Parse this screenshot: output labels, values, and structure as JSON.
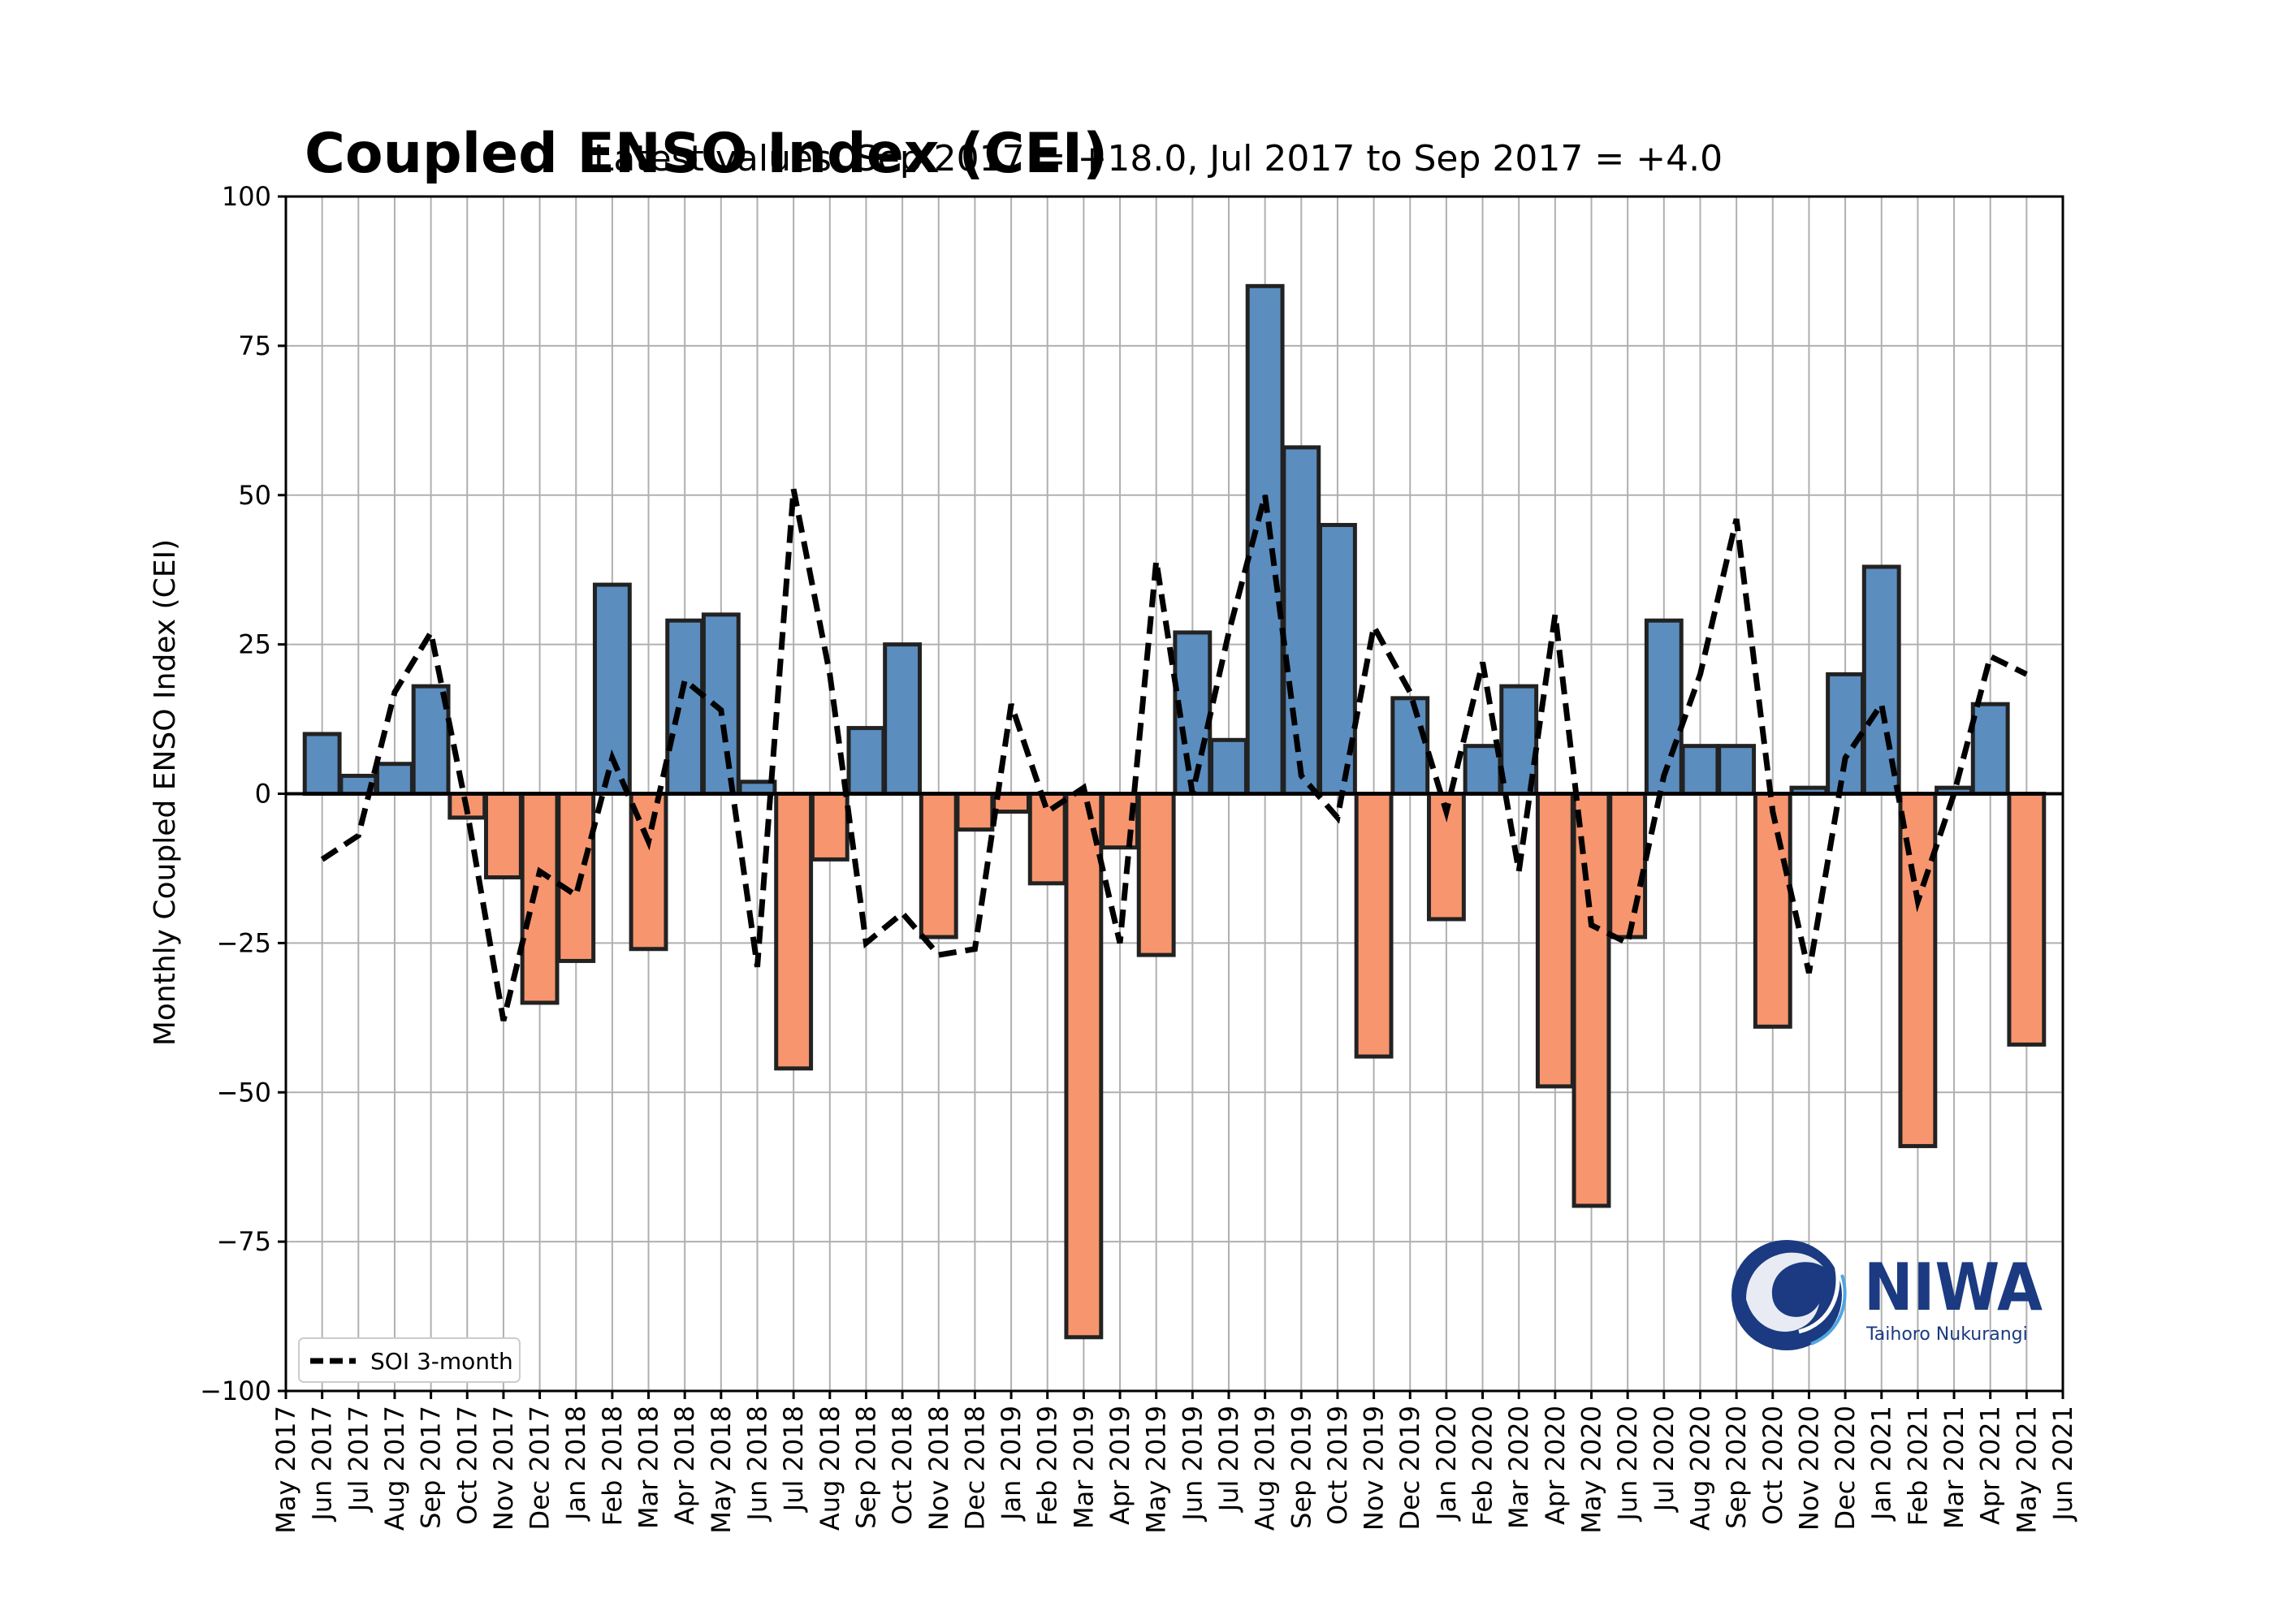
{
  "title": "Coupled ENSO Index (CEI)",
  "subtitle": "Latest values: Sep 2017 = +18.0, Jul 2017 to Sep 2017 = +4.0",
  "logo": {
    "name": "NIWA",
    "tagline": "Taihoro Nukurangi"
  },
  "colors": {
    "positive": "#5b8dbf",
    "negative": "#f7956e",
    "edge": "#222222",
    "line": "#000000",
    "grid": "#b0b0b0"
  },
  "chart_data": {
    "type": "bar",
    "title": "Coupled ENSO Index (CEI)",
    "subtitle": "Latest values: Sep 2017 = +18.0, Jul 2017 to Sep 2017 = +4.0",
    "ylabel": "Monthly Coupled ENSO Index (CEI)",
    "xlabel": "",
    "ylim": [
      -100,
      100
    ],
    "yticks": [
      -100,
      -75,
      -50,
      -25,
      0,
      25,
      50,
      75,
      100
    ],
    "ytick_labels": [
      "−100",
      "−75",
      "−50",
      "−25",
      "0",
      "25",
      "50",
      "75",
      "100"
    ],
    "grid": true,
    "legend_position": "lower-left",
    "xtick_labels": [
      "May 2017",
      "Jun 2017",
      "Jul 2017",
      "Aug 2017",
      "Sep 2017",
      "Oct 2017",
      "Nov 2017",
      "Dec 2017",
      "Jan 2018",
      "Feb 2018",
      "Mar 2018",
      "Apr 2018",
      "May 2018",
      "Jun 2018",
      "Jul 2018",
      "Aug 2018",
      "Sep 2018",
      "Oct 2018",
      "Nov 2018",
      "Dec 2018",
      "Jan 2019",
      "Feb 2019",
      "Mar 2019",
      "Apr 2019",
      "May 2019",
      "Jun 2019",
      "Jul 2019",
      "Aug 2019",
      "Sep 2019",
      "Oct 2019",
      "Nov 2019",
      "Dec 2019",
      "Jan 2020",
      "Feb 2020",
      "Mar 2020",
      "Apr 2020",
      "May 2020",
      "Jun 2020",
      "Jul 2020",
      "Aug 2020",
      "Sep 2020",
      "Oct 2020",
      "Nov 2020",
      "Dec 2020",
      "Jan 2021",
      "Feb 2021",
      "Mar 2021",
      "Apr 2021",
      "May 2021",
      "Jun 2021"
    ],
    "categories": [
      "Jun 2017",
      "Jul 2017",
      "Aug 2017",
      "Sep 2017",
      "Oct 2017",
      "Nov 2017",
      "Dec 2017",
      "Jan 2018",
      "Feb 2018",
      "Mar 2018",
      "Apr 2018",
      "May 2018",
      "Jun 2018",
      "Jul 2018",
      "Aug 2018",
      "Sep 2018",
      "Oct 2018",
      "Nov 2018",
      "Dec 2018",
      "Jan 2019",
      "Feb 2019",
      "Mar 2019",
      "Apr 2019",
      "May 2019",
      "Jun 2019",
      "Jul 2019",
      "Aug 2019",
      "Sep 2019",
      "Oct 2019",
      "Nov 2019",
      "Dec 2019",
      "Jan 2020",
      "Feb 2020",
      "Mar 2020",
      "Apr 2020",
      "May 2020",
      "Jun 2020",
      "Jul 2020",
      "Aug 2020",
      "Sep 2020",
      "Oct 2020",
      "Nov 2020",
      "Dec 2020",
      "Jan 2021",
      "Feb 2021",
      "Mar 2021",
      "Apr 2021",
      "May 2021"
    ],
    "series": [
      {
        "type": "bar",
        "values": [
          10,
          3,
          5,
          18,
          -4,
          -14,
          -35,
          -28,
          35,
          -26,
          29,
          30,
          2,
          -46,
          -11,
          11,
          25,
          -24,
          -6,
          -3,
          -15,
          -91,
          -9,
          -27,
          27,
          9,
          85,
          58,
          45,
          -44,
          16,
          -21,
          8,
          18,
          -49,
          -69,
          -24,
          29,
          8,
          8,
          -39,
          1,
          20,
          38,
          -59,
          1,
          15,
          -42
        ]
      },
      {
        "name": "SOI 3-month",
        "type": "line",
        "style": "dashed",
        "values": [
          -11,
          -7,
          17,
          27,
          -3,
          -38,
          -13,
          -17,
          6,
          -8,
          19,
          14,
          -29,
          51,
          20,
          -25,
          -20,
          -27,
          -26,
          15,
          -3,
          1,
          -25,
          39,
          0,
          27,
          50,
          3,
          -4,
          28,
          17,
          -3,
          22,
          -13,
          30,
          -22,
          -25,
          3,
          20,
          46,
          -3,
          -30,
          6,
          15,
          -18,
          0,
          23,
          20
        ]
      }
    ]
  }
}
